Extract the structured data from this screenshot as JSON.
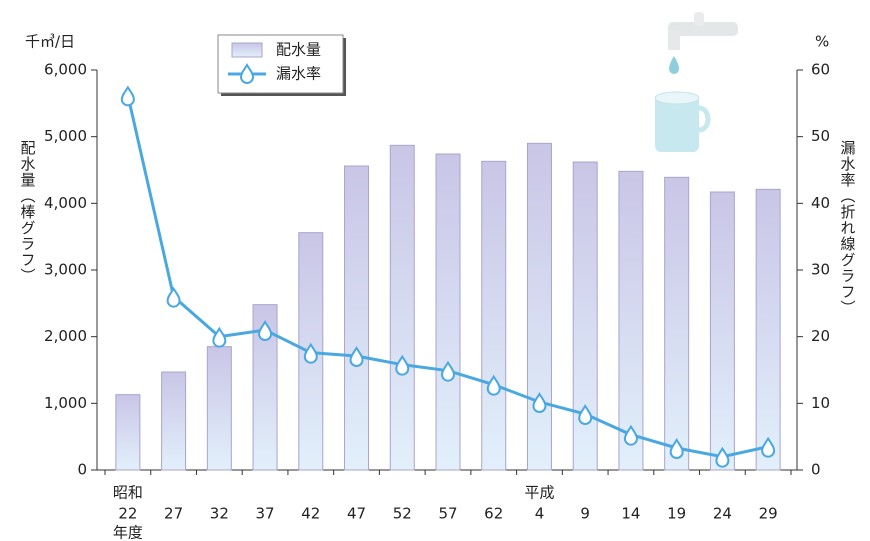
{
  "chart_data": {
    "type": "bar",
    "y_unit": "千㎥/日",
    "y2_unit": "%",
    "ylabel": "配水量（棒グラフ）",
    "y2label": "漏水率（折れ線グラフ）",
    "categories": [
      "22",
      "27",
      "32",
      "37",
      "42",
      "47",
      "52",
      "57",
      "62",
      "4",
      "9",
      "14",
      "19",
      "24",
      "29"
    ],
    "era_labels": [
      "昭和",
      "年度",
      "平成"
    ],
    "series": [
      {
        "name": "配水量",
        "type": "bar",
        "color": "#c9c5e6",
        "values": [
          1130,
          1470,
          1850,
          2480,
          3560,
          4560,
          4870,
          4740,
          4630,
          4900,
          4620,
          4480,
          4390,
          4170,
          4210
        ]
      },
      {
        "name": "漏水率",
        "type": "line",
        "axis": "y2",
        "color": "#4aa8e0",
        "values": [
          56.2,
          26.0,
          20.0,
          21.0,
          17.6,
          17.1,
          15.8,
          14.9,
          12.8,
          10.2,
          8.4,
          5.3,
          3.3,
          2.0,
          3.5
        ]
      }
    ],
    "ylim": [
      0,
      6000
    ],
    "yticks": [
      0,
      {
        "value": 1000,
        "label": "1,000"
      },
      {
        "value": 2000,
        "label": "2,000"
      },
      {
        "value": 3000,
        "label": "3,000"
      },
      {
        "value": 4000,
        "label": "4,000"
      },
      {
        "value": 5000,
        "label": "5,000"
      },
      {
        "value": 6000,
        "label": "6,000"
      }
    ],
    "y2lim": [
      0,
      60
    ],
    "y2ticks": [
      0,
      10,
      20,
      30,
      40,
      50,
      60
    ],
    "legend": "top-left"
  }
}
